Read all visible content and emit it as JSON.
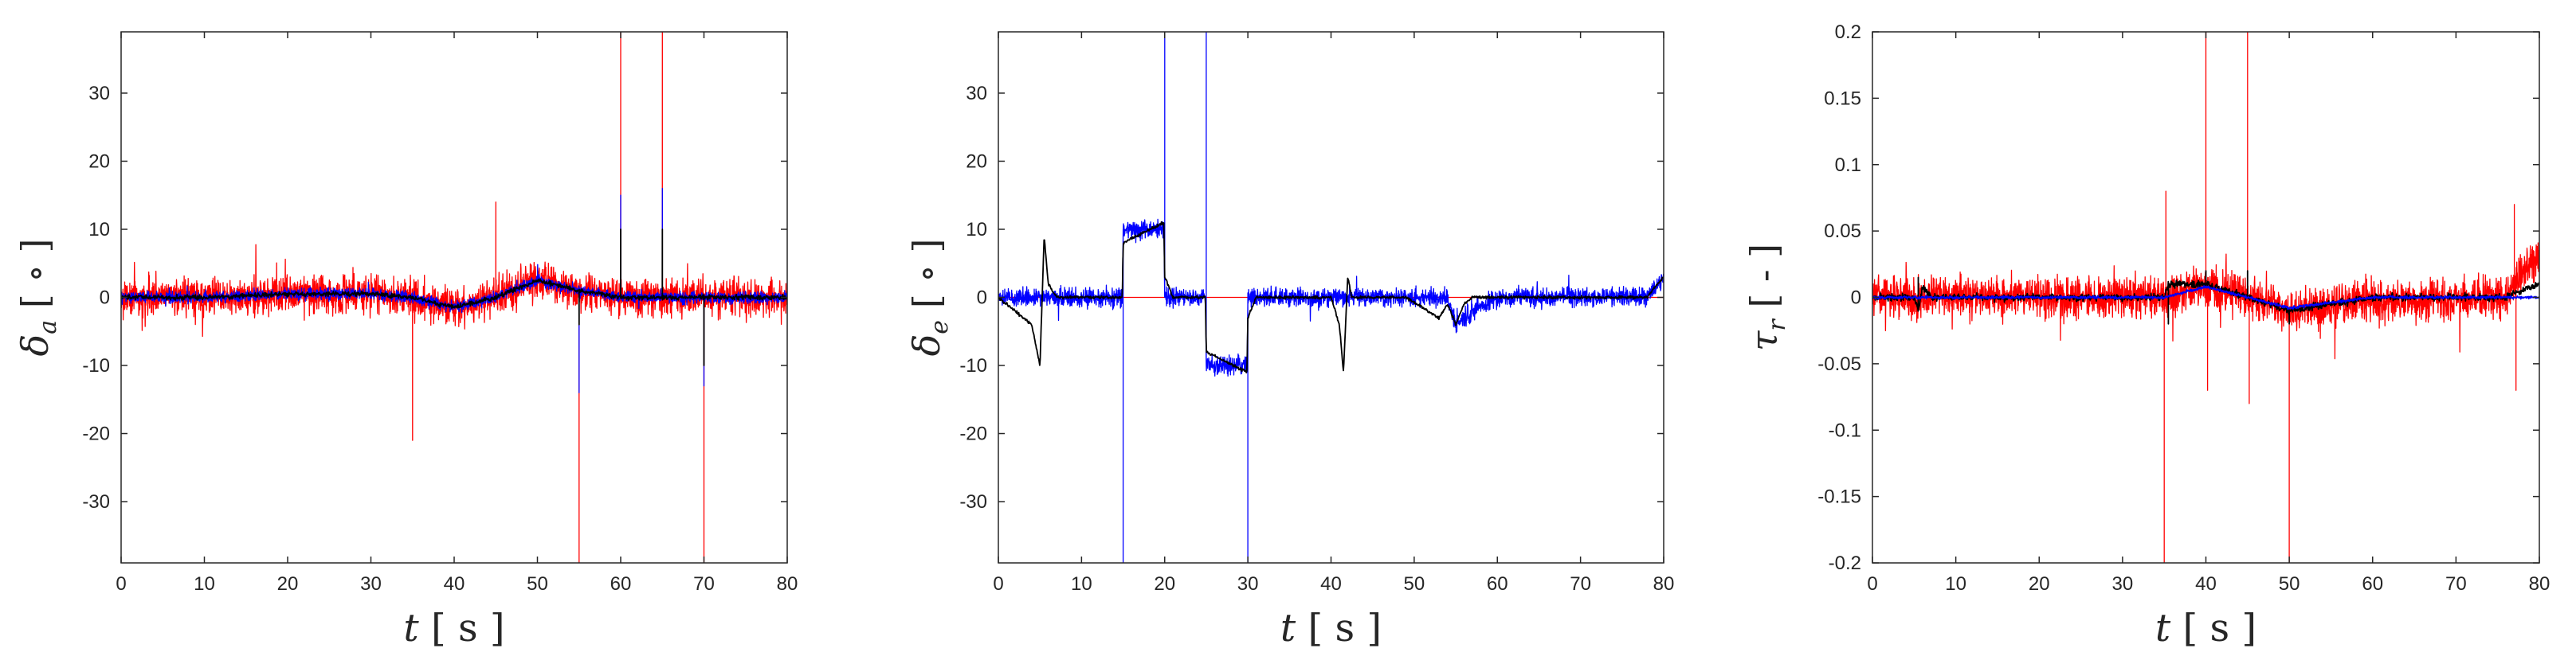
{
  "chart_data": [
    {
      "type": "line",
      "title": "",
      "xlabel": {
        "symbol": "t",
        "unit": "s"
      },
      "ylabel": {
        "symbol": "δ",
        "subscript": "a",
        "unit": "∘"
      },
      "xlim": [
        0,
        80
      ],
      "ylim": [
        -39,
        39
      ],
      "xticks": [
        0,
        10,
        20,
        30,
        40,
        50,
        60,
        70,
        80
      ],
      "yticks": [
        -30,
        -20,
        -10,
        0,
        10,
        20,
        30
      ],
      "grid": false,
      "legend": "none",
      "series": [
        {
          "color": "#ff0000",
          "kind": "noisy",
          "noise_amplitude": 4,
          "baseline": [
            [
              0,
              0
            ],
            [
              10,
              0
            ],
            [
              20,
              0.5
            ],
            [
              30,
              0.5
            ],
            [
              35,
              0
            ],
            [
              40,
              -1.5
            ],
            [
              45,
              0
            ],
            [
              50,
              2.5
            ],
            [
              55,
              1
            ],
            [
              60,
              0
            ],
            [
              70,
              0
            ],
            [
              80,
              0
            ]
          ],
          "spikes": [
            [
              35,
              -21
            ],
            [
              45,
              14
            ],
            [
              55,
              -39
            ],
            [
              60,
              39
            ],
            [
              65,
              39
            ],
            [
              70,
              -39
            ]
          ]
        },
        {
          "color": "#0000ff",
          "kind": "noisy",
          "noise_amplitude": 1.2,
          "baseline": [
            [
              0,
              0
            ],
            [
              10,
              0
            ],
            [
              20,
              0.5
            ],
            [
              30,
              0.5
            ],
            [
              35,
              0
            ],
            [
              40,
              -1.5
            ],
            [
              45,
              0
            ],
            [
              50,
              2.5
            ],
            [
              55,
              1
            ],
            [
              60,
              0
            ],
            [
              70,
              0
            ],
            [
              80,
              0
            ]
          ],
          "spikes": [
            [
              55,
              -14
            ],
            [
              60,
              15
            ],
            [
              65,
              16
            ],
            [
              70,
              -13
            ]
          ]
        },
        {
          "color": "#000000",
          "kind": "smooth",
          "noise_amplitude": 0.5,
          "baseline": [
            [
              0,
              0
            ],
            [
              10,
              0
            ],
            [
              20,
              0.5
            ],
            [
              30,
              0.5
            ],
            [
              35,
              0
            ],
            [
              40,
              -1.5
            ],
            [
              45,
              0
            ],
            [
              50,
              2.5
            ],
            [
              55,
              1
            ],
            [
              60,
              0
            ],
            [
              70,
              0
            ],
            [
              80,
              0
            ]
          ],
          "spikes": [
            [
              55,
              -4
            ],
            [
              60,
              10
            ],
            [
              65,
              10
            ],
            [
              70,
              -10
            ]
          ]
        }
      ]
    },
    {
      "type": "line",
      "title": "",
      "xlabel": {
        "symbol": "t",
        "unit": "s"
      },
      "ylabel": {
        "symbol": "δ",
        "subscript": "e",
        "unit": "∘"
      },
      "xlim": [
        0,
        80
      ],
      "ylim": [
        -39,
        39
      ],
      "xticks": [
        0,
        10,
        20,
        30,
        40,
        50,
        60,
        70,
        80
      ],
      "yticks": [
        -30,
        -20,
        -10,
        0,
        10,
        20,
        30
      ],
      "grid": false,
      "legend": "none",
      "series": [
        {
          "color": "#ff0000",
          "kind": "flat",
          "noise_amplitude": 0,
          "baseline": [
            [
              0,
              0
            ],
            [
              80,
              0
            ]
          ],
          "spikes": []
        },
        {
          "color": "#0000ff",
          "kind": "noisy",
          "noise_amplitude": 2,
          "baseline": [
            [
              0,
              0
            ],
            [
              14.9,
              0
            ],
            [
              15,
              10
            ],
            [
              19.9,
              10
            ],
            [
              20,
              0
            ],
            [
              24.9,
              0
            ],
            [
              25,
              -10
            ],
            [
              29.9,
              -10
            ],
            [
              30,
              0
            ],
            [
              54,
              0
            ],
            [
              55,
              -4
            ],
            [
              57,
              -2
            ],
            [
              60,
              0
            ],
            [
              78,
              0
            ],
            [
              80,
              3
            ]
          ],
          "spikes": [
            [
              15,
              -39
            ],
            [
              20,
              39
            ],
            [
              25,
              39
            ],
            [
              30,
              -39
            ]
          ]
        },
        {
          "color": "#000000",
          "kind": "smooth",
          "noise_amplitude": 0.3,
          "baseline": [
            [
              0,
              0
            ],
            [
              4,
              -4
            ],
            [
              5,
              -10
            ],
            [
              5.5,
              9
            ],
            [
              6,
              2
            ],
            [
              7,
              0
            ],
            [
              14.9,
              0
            ],
            [
              15,
              8
            ],
            [
              19.9,
              11
            ],
            [
              20,
              3
            ],
            [
              21,
              0
            ],
            [
              24.9,
              0
            ],
            [
              25,
              -8
            ],
            [
              29.9,
              -11
            ],
            [
              30,
              -3
            ],
            [
              31,
              0
            ],
            [
              40,
              0
            ],
            [
              41,
              -4
            ],
            [
              41.5,
              -11
            ],
            [
              42,
              3
            ],
            [
              42.5,
              0
            ],
            [
              49,
              0
            ],
            [
              53,
              -3
            ],
            [
              54,
              -1
            ],
            [
              55,
              -4
            ],
            [
              56,
              -1
            ],
            [
              57,
              0
            ],
            [
              78,
              0
            ],
            [
              80,
              3
            ]
          ],
          "spikes": []
        }
      ]
    },
    {
      "type": "line",
      "title": "",
      "xlabel": {
        "symbol": "t",
        "unit": "s"
      },
      "ylabel": {
        "symbol": "τ",
        "subscript": "r",
        "unit": "-"
      },
      "xlim": [
        0,
        80
      ],
      "ylim": [
        -0.2,
        0.2
      ],
      "xticks": [
        0,
        10,
        20,
        30,
        40,
        50,
        60,
        70,
        80
      ],
      "yticks": [
        -0.2,
        -0.15,
        -0.1,
        -0.05,
        0,
        0.05,
        0.1,
        0.15,
        0.2
      ],
      "grid": false,
      "legend": "none",
      "series": [
        {
          "color": "#ff0000",
          "kind": "noisy",
          "noise_amplitude": 0.022,
          "baseline": [
            [
              0,
              0
            ],
            [
              35,
              0
            ],
            [
              40,
              0.008
            ],
            [
              45,
              0
            ],
            [
              50,
              -0.01
            ],
            [
              55,
              -0.005
            ],
            [
              76,
              0
            ],
            [
              78,
              0.02
            ],
            [
              80,
              0.03
            ]
          ],
          "spikes": [
            [
              35,
              -0.2
            ],
            [
              35.2,
              0.08
            ],
            [
              40,
              0.2
            ],
            [
              40.2,
              -0.07
            ],
            [
              45,
              0.2
            ],
            [
              45.2,
              -0.08
            ],
            [
              50,
              -0.2
            ],
            [
              77,
              0.07
            ],
            [
              77.2,
              -0.07
            ]
          ]
        },
        {
          "color": "#000000",
          "kind": "smooth",
          "noise_amplitude": 0.004,
          "baseline": [
            [
              0,
              0
            ],
            [
              5,
              0
            ],
            [
              5.5,
              -0.01
            ],
            [
              6,
              0.008
            ],
            [
              7,
              0
            ],
            [
              35,
              0
            ],
            [
              35.5,
              0.01
            ],
            [
              40,
              0.01
            ],
            [
              45,
              0
            ],
            [
              50,
              -0.01
            ],
            [
              55,
              -0.005
            ],
            [
              60,
              0
            ],
            [
              76,
              0
            ],
            [
              80,
              0.01
            ]
          ],
          "spikes": [
            [
              5.5,
              0.015
            ],
            [
              35.5,
              -0.02
            ],
            [
              40,
              0.02
            ],
            [
              45,
              0.02
            ],
            [
              50,
              -0.02
            ]
          ]
        },
        {
          "color": "#0000ff",
          "kind": "smooth",
          "noise_amplitude": 0.0015,
          "baseline": [
            [
              0,
              0
            ],
            [
              35,
              0
            ],
            [
              40,
              0.008
            ],
            [
              45,
              0
            ],
            [
              50,
              -0.008
            ],
            [
              55,
              -0.004
            ],
            [
              60,
              0
            ],
            [
              80,
              0
            ]
          ],
          "spikes": []
        }
      ]
    }
  ]
}
